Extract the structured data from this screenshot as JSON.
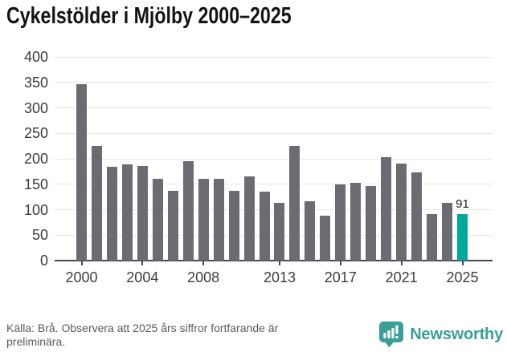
{
  "title": "Cykelstölder i Mjölby 2000–2025",
  "chart_data": {
    "type": "bar",
    "title": "Cykelstölder i Mjölby 2000–2025",
    "x": [
      2000,
      2001,
      2002,
      2003,
      2004,
      2005,
      2006,
      2007,
      2008,
      2009,
      2010,
      2011,
      2012,
      2013,
      2014,
      2015,
      2016,
      2017,
      2018,
      2019,
      2020,
      2021,
      2022,
      2023,
      2024,
      2025
    ],
    "values": [
      347,
      225,
      185,
      189,
      186,
      161,
      137,
      196,
      161,
      161,
      137,
      166,
      135,
      114,
      225,
      117,
      88,
      150,
      152,
      146,
      203,
      190,
      174,
      92,
      114,
      91
    ],
    "ylim": [
      0,
      400
    ],
    "yticks": [
      0,
      50,
      100,
      150,
      200,
      250,
      300,
      350,
      400
    ],
    "xticks": [
      2000,
      2004,
      2008,
      2013,
      2017,
      2021,
      2025
    ],
    "grid": "horizontal",
    "legend": "none",
    "highlight": {
      "x": 2025,
      "value": 91,
      "label": "91"
    },
    "colors": {
      "bar": "#6b6b72",
      "highlight": "#00a79b",
      "gridline": "#e7e7e7",
      "axis": "#46464c",
      "tick_label": "#3c3c40"
    }
  },
  "footer": {
    "source": "Källa: Brå. Observera att 2025 års siffror fortfarande är preliminära.",
    "brand": "Newsworthy",
    "brand_color": "#3b9e98"
  }
}
